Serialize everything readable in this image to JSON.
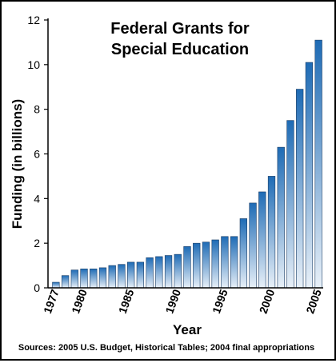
{
  "chart_data": {
    "type": "bar",
    "title_line1": "Federal Grants for",
    "title_line2": "Special Education",
    "xlabel": "Year",
    "ylabel": "Funding (in billions)",
    "source": "Sources: 2005 U.S. Budget, Historical Tables; 2004 final appropriations",
    "ylim": [
      0,
      12
    ],
    "yticks": [
      0,
      2,
      4,
      6,
      8,
      10,
      12
    ],
    "xtick_labels": [
      "1977",
      "1980",
      "1985",
      "1990",
      "1995",
      "2000",
      "2005"
    ],
    "grid": false,
    "categories": [
      "1977",
      "1978",
      "1979",
      "1980",
      "1981",
      "1982",
      "1983",
      "1984",
      "1985",
      "1986",
      "1987",
      "1988",
      "1989",
      "1990",
      "1991",
      "1992",
      "1993",
      "1994",
      "1995",
      "1996",
      "1997",
      "1998",
      "1999",
      "2000",
      "2001",
      "2002",
      "2003",
      "2004",
      "2005"
    ],
    "values": [
      0.25,
      0.55,
      0.8,
      0.85,
      0.85,
      0.9,
      1.0,
      1.05,
      1.15,
      1.15,
      1.35,
      1.4,
      1.45,
      1.5,
      1.85,
      2.0,
      2.05,
      2.15,
      2.3,
      2.3,
      3.1,
      3.8,
      4.3,
      5.0,
      6.3,
      7.5,
      8.9,
      10.1,
      11.1
    ],
    "colors": {
      "bar_top": "#1e6bb5",
      "bar_bottom": "#e8f0f8",
      "bar_edge": "#1a3d66",
      "axis": "#000000"
    }
  }
}
